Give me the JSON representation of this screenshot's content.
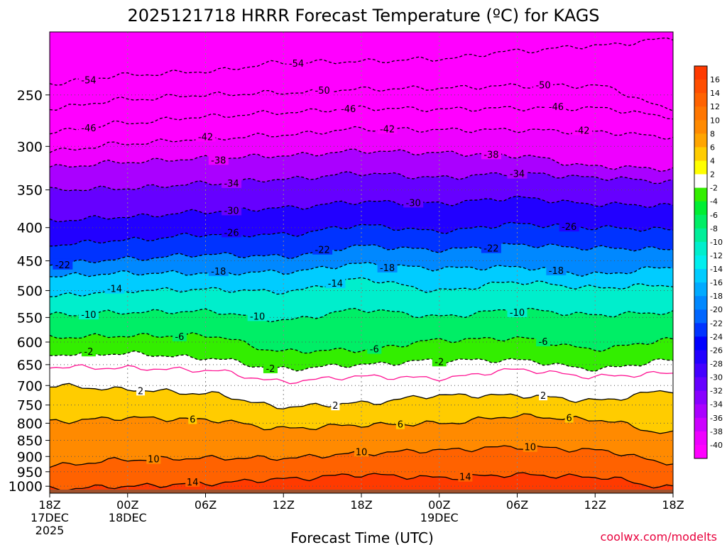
{
  "chart_data": {
    "type": "heatmap",
    "title": "2025121718 HRRR Forecast Temperature (ºC) for KAGS",
    "xlabel": "Forecast Time (UTC)",
    "ylabel": "",
    "credit": "coolwx.com/modelts",
    "y_axis": {
      "scale": "log-pressure",
      "reversed": true,
      "range": [
        1025,
        200
      ],
      "ticks": [
        250,
        300,
        350,
        400,
        450,
        500,
        550,
        600,
        650,
        700,
        750,
        800,
        850,
        900,
        950,
        1000
      ]
    },
    "x_axis": {
      "range_hours": [
        0,
        48
      ],
      "ticks": [
        {
          "hour": 0,
          "lines": [
            "18Z",
            "17DEC",
            "2025"
          ]
        },
        {
          "hour": 6,
          "lines": [
            "00Z",
            "18DEC"
          ]
        },
        {
          "hour": 12,
          "lines": [
            "06Z"
          ]
        },
        {
          "hour": 18,
          "lines": [
            "12Z"
          ]
        },
        {
          "hour": 24,
          "lines": [
            "18Z"
          ]
        },
        {
          "hour": 30,
          "lines": [
            "00Z",
            "19DEC"
          ]
        },
        {
          "hour": 36,
          "lines": [
            "06Z"
          ]
        },
        {
          "hour": 42,
          "lines": [
            "12Z"
          ]
        },
        {
          "hour": 48,
          "lines": [
            "18Z"
          ]
        }
      ]
    },
    "grid": true,
    "legend": "right",
    "colorbar": {
      "ticks": [
        16,
        14,
        12,
        10,
        8,
        6,
        4,
        2,
        -2,
        -4,
        -6,
        -8,
        -10,
        -12,
        -14,
        -16,
        -18,
        -20,
        -22,
        -24,
        -26,
        -28,
        -30,
        -32,
        -34,
        -36,
        -38,
        -40
      ],
      "colors": [
        {
          "from": 16,
          "to": 18,
          "color": "#ff3a00"
        },
        {
          "from": 14,
          "to": 16,
          "color": "#ff4e00"
        },
        {
          "from": 12,
          "to": 14,
          "color": "#ff6200"
        },
        {
          "from": 10,
          "to": 12,
          "color": "#ff7600"
        },
        {
          "from": 8,
          "to": 10,
          "color": "#ff8a00"
        },
        {
          "from": 6,
          "to": 8,
          "color": "#ffa500"
        },
        {
          "from": 4,
          "to": 6,
          "color": "#ffcc00"
        },
        {
          "from": 2,
          "to": 4,
          "color": "#ffff00"
        },
        {
          "from": -2,
          "to": 2,
          "color": "#ffffff"
        },
        {
          "from": -4,
          "to": -2,
          "color": "#33ee00"
        },
        {
          "from": -6,
          "to": -4,
          "color": "#00ee33"
        },
        {
          "from": -8,
          "to": -6,
          "color": "#00ee66"
        },
        {
          "from": -10,
          "to": -8,
          "color": "#00ee99"
        },
        {
          "from": -12,
          "to": -10,
          "color": "#00eecc"
        },
        {
          "from": -14,
          "to": -12,
          "color": "#00eeee"
        },
        {
          "from": -16,
          "to": -14,
          "color": "#00ccff"
        },
        {
          "from": -18,
          "to": -16,
          "color": "#00aaff"
        },
        {
          "from": -20,
          "to": -18,
          "color": "#0088ff"
        },
        {
          "from": -22,
          "to": -20,
          "color": "#0066ff"
        },
        {
          "from": -24,
          "to": -22,
          "color": "#0033ff"
        },
        {
          "from": -26,
          "to": -24,
          "color": "#0000ff"
        },
        {
          "from": -28,
          "to": -26,
          "color": "#2200ff"
        },
        {
          "from": -30,
          "to": -28,
          "color": "#4400ff"
        },
        {
          "from": -32,
          "to": -30,
          "color": "#6600ff"
        },
        {
          "from": -34,
          "to": -32,
          "color": "#8800ff"
        },
        {
          "from": -36,
          "to": -34,
          "color": "#aa00ff"
        },
        {
          "from": -38,
          "to": -36,
          "color": "#cc00ff"
        },
        {
          "from": -40,
          "to": -38,
          "color": "#ee00ff"
        },
        {
          "from": -44,
          "to": -40,
          "color": "#ff00ff"
        }
      ]
    },
    "ground_color": "#a0522d",
    "contour_colors": {
      "positive": "#000000",
      "freezing": "#ff1493",
      "negative": "#000000"
    },
    "hours": [
      0,
      6,
      12,
      18,
      24,
      30,
      36,
      42,
      48
    ],
    "series": [
      {
        "temp": 14,
        "pressure": [
          1010,
          1000,
          990,
          975,
          960,
          970,
          960,
          968,
          1005
        ]
      },
      {
        "temp": 10,
        "pressure": [
          930,
          910,
          905,
          905,
          890,
          880,
          870,
          880,
          920
        ]
      },
      {
        "temp": 6,
        "pressure": [
          795,
          785,
          790,
          815,
          805,
          800,
          780,
          790,
          830
        ]
      },
      {
        "temp": 2,
        "pressure": [
          700,
          710,
          720,
          755,
          745,
          725,
          725,
          738,
          712
        ]
      },
      {
        "temp": 0,
        "pressure": [
          655,
          658,
          663,
          690,
          678,
          682,
          662,
          678,
          670
        ]
      },
      {
        "temp": -2,
        "pressure": [
          627,
          625,
          635,
          660,
          650,
          640,
          640,
          660,
          640
        ]
      },
      {
        "temp": -6,
        "pressure": [
          590,
          587,
          586,
          620,
          617,
          596,
          592,
          615,
          595
        ]
      },
      {
        "temp": -10,
        "pressure": [
          545,
          540,
          538,
          555,
          535,
          548,
          535,
          545,
          540
        ]
      },
      {
        "temp": -14,
        "pressure": [
          510,
          500,
          498,
          502,
          480,
          500,
          485,
          495,
          490
        ]
      },
      {
        "temp": -18,
        "pressure": [
          475,
          470,
          470,
          468,
          455,
          462,
          460,
          472,
          460
        ]
      },
      {
        "temp": -22,
        "pressure": [
          455,
          447,
          440,
          443,
          427,
          433,
          425,
          430,
          432
        ]
      },
      {
        "temp": -26,
        "pressure": [
          425,
          418,
          410,
          410,
          397,
          405,
          395,
          400,
          403
        ]
      },
      {
        "temp": -30,
        "pressure": [
          390,
          385,
          378,
          373,
          365,
          367,
          360,
          368,
          370
        ]
      },
      {
        "temp": -34,
        "pressure": [
          350,
          348,
          342,
          337,
          330,
          335,
          330,
          335,
          340
        ]
      },
      {
        "temp": -38,
        "pressure": [
          323,
          317,
          313,
          310,
          305,
          307,
          310,
          322,
          325
        ]
      },
      {
        "temp": -42,
        "pressure": [
          305,
          297,
          292,
          288,
          282,
          283,
          283,
          285,
          290
        ]
      },
      {
        "temp": -46,
        "pressure": [
          285,
          276,
          270,
          266,
          262,
          263,
          262,
          262,
          270
        ]
      },
      {
        "temp": -50,
        "pressure": [
          262,
          254,
          250,
          248,
          245,
          244,
          242,
          242,
          262
        ]
      },
      {
        "temp": -54,
        "pressure": [
          240,
          233,
          230,
          223,
          222,
          220,
          214,
          210,
          205
        ]
      }
    ],
    "contour_labels": [
      {
        "temp": 14,
        "hour": 11
      },
      {
        "temp": 14,
        "hour": 32
      },
      {
        "temp": 10,
        "hour": 8
      },
      {
        "temp": 10,
        "hour": 24
      },
      {
        "temp": 10,
        "hour": 37
      },
      {
        "temp": 6,
        "hour": 11
      },
      {
        "temp": 6,
        "hour": 27
      },
      {
        "temp": 6,
        "hour": 40
      },
      {
        "temp": 2,
        "hour": 7
      },
      {
        "temp": 2,
        "hour": 22
      },
      {
        "temp": 2,
        "hour": 38
      },
      {
        "temp": -2,
        "hour": 3
      },
      {
        "temp": -2,
        "hour": 17
      },
      {
        "temp": -2,
        "hour": 30
      },
      {
        "temp": -6,
        "hour": 10
      },
      {
        "temp": -6,
        "hour": 25
      },
      {
        "temp": -6,
        "hour": 38
      },
      {
        "temp": -10,
        "hour": 3
      },
      {
        "temp": -10,
        "hour": 16
      },
      {
        "temp": -10,
        "hour": 36
      },
      {
        "temp": -14,
        "hour": 5
      },
      {
        "temp": -14,
        "hour": 22
      },
      {
        "temp": -18,
        "hour": 13
      },
      {
        "temp": -18,
        "hour": 26
      },
      {
        "temp": -18,
        "hour": 39
      },
      {
        "temp": -22,
        "hour": 1
      },
      {
        "temp": -22,
        "hour": 21
      },
      {
        "temp": -22,
        "hour": 34
      },
      {
        "temp": -26,
        "hour": 14
      },
      {
        "temp": -26,
        "hour": 40
      },
      {
        "temp": -30,
        "hour": 14
      },
      {
        "temp": -30,
        "hour": 28
      },
      {
        "temp": -34,
        "hour": 14
      },
      {
        "temp": -34,
        "hour": 36
      },
      {
        "temp": -38,
        "hour": 13
      },
      {
        "temp": -38,
        "hour": 34
      },
      {
        "temp": -42,
        "hour": 12
      },
      {
        "temp": -42,
        "hour": 26
      },
      {
        "temp": -42,
        "hour": 41
      },
      {
        "temp": -46,
        "hour": 3
      },
      {
        "temp": -46,
        "hour": 23
      },
      {
        "temp": -46,
        "hour": 39
      },
      {
        "temp": -50,
        "hour": 21
      },
      {
        "temp": -50,
        "hour": 38
      },
      {
        "temp": -54,
        "hour": 3
      },
      {
        "temp": -54,
        "hour": 19
      }
    ]
  }
}
